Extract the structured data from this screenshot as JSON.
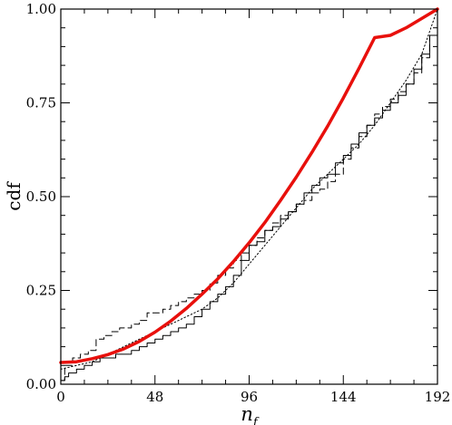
{
  "chart_data": {
    "type": "line",
    "title": "",
    "xlabel": "n",
    "xlabel_subscript": "f",
    "ylabel": "cdf",
    "xlim": [
      0,
      192
    ],
    "ylim": [
      0,
      1
    ],
    "xticks": [
      0,
      48,
      96,
      144,
      192
    ],
    "xtick_labels": [
      "0",
      "48",
      "96",
      "144",
      "192"
    ],
    "yticks": [
      0,
      0.25,
      0.5,
      0.75,
      1
    ],
    "ytick_labels": [
      "0.00",
      "0.25",
      "0.50",
      "0.75",
      "1.00"
    ],
    "grid": false,
    "legend": "none",
    "series": [
      {
        "style": "solid",
        "color": "#000000",
        "width": 1,
        "step": true,
        "x": [
          0,
          2,
          4,
          8,
          12,
          16,
          20,
          28,
          36,
          40,
          44,
          48,
          52,
          56,
          60,
          64,
          68,
          72,
          76,
          80,
          84,
          88,
          92,
          96,
          100,
          104,
          108,
          112,
          116,
          120,
          124,
          128,
          132,
          136,
          140,
          144,
          148,
          152,
          156,
          160,
          164,
          168,
          172,
          176,
          180,
          184,
          188,
          192
        ],
        "y": [
          0.01,
          0.02,
          0.03,
          0.04,
          0.05,
          0.06,
          0.07,
          0.08,
          0.09,
          0.1,
          0.11,
          0.12,
          0.13,
          0.14,
          0.15,
          0.16,
          0.18,
          0.2,
          0.22,
          0.24,
          0.26,
          0.29,
          0.33,
          0.37,
          0.38,
          0.41,
          0.42,
          0.44,
          0.46,
          0.48,
          0.51,
          0.53,
          0.55,
          0.56,
          0.59,
          0.61,
          0.64,
          0.67,
          0.69,
          0.71,
          0.73,
          0.75,
          0.77,
          0.8,
          0.84,
          0.88,
          0.93,
          1.0
        ]
      },
      {
        "style": "dashed",
        "color": "#000000",
        "width": 1,
        "step": true,
        "x": [
          0,
          2,
          6,
          10,
          14,
          18,
          22,
          26,
          30,
          36,
          40,
          44,
          48,
          52,
          56,
          60,
          64,
          68,
          72,
          76,
          80,
          84,
          88,
          92,
          96,
          100,
          104,
          108,
          112,
          116,
          120,
          124,
          128,
          132,
          136,
          140,
          144,
          148,
          152,
          156,
          160,
          164,
          168,
          172,
          176,
          180,
          184,
          188,
          192
        ],
        "y": [
          0.01,
          0.05,
          0.07,
          0.08,
          0.09,
          0.12,
          0.13,
          0.14,
          0.15,
          0.16,
          0.17,
          0.19,
          0.19,
          0.2,
          0.21,
          0.22,
          0.23,
          0.24,
          0.25,
          0.27,
          0.29,
          0.31,
          0.33,
          0.35,
          0.37,
          0.39,
          0.41,
          0.43,
          0.45,
          0.46,
          0.48,
          0.49,
          0.51,
          0.52,
          0.54,
          0.56,
          0.6,
          0.63,
          0.66,
          0.69,
          0.72,
          0.74,
          0.76,
          0.78,
          0.8,
          0.83,
          0.87,
          0.93,
          1.0
        ]
      },
      {
        "style": "dotted",
        "color": "#000000",
        "width": 1,
        "step": false,
        "x": [
          0,
          8,
          16,
          24,
          32,
          40,
          48,
          56,
          64,
          72,
          80,
          88,
          96,
          104,
          112,
          120,
          128,
          136,
          144,
          152,
          160,
          168,
          176,
          184,
          192
        ],
        "y": [
          0.04,
          0.05,
          0.06,
          0.08,
          0.1,
          0.12,
          0.14,
          0.16,
          0.18,
          0.2,
          0.23,
          0.27,
          0.32,
          0.37,
          0.42,
          0.47,
          0.52,
          0.56,
          0.6,
          0.64,
          0.69,
          0.75,
          0.81,
          0.88,
          1.0
        ]
      },
      {
        "style": "solid",
        "color": "#e8100c",
        "width": 3.5,
        "step": false,
        "x": [
          0,
          8,
          16,
          24,
          32,
          40,
          48,
          56,
          64,
          72,
          80,
          88,
          96,
          104,
          112,
          120,
          128,
          136,
          144,
          152,
          160,
          168,
          176,
          184,
          192
        ],
        "y": [
          0.058,
          0.06,
          0.068,
          0.079,
          0.094,
          0.114,
          0.139,
          0.168,
          0.202,
          0.24,
          0.281,
          0.327,
          0.377,
          0.431,
          0.49,
          0.552,
          0.618,
          0.688,
          0.763,
          0.842,
          0.924,
          0.93,
          0.95,
          0.975,
          1.0
        ]
      }
    ]
  }
}
